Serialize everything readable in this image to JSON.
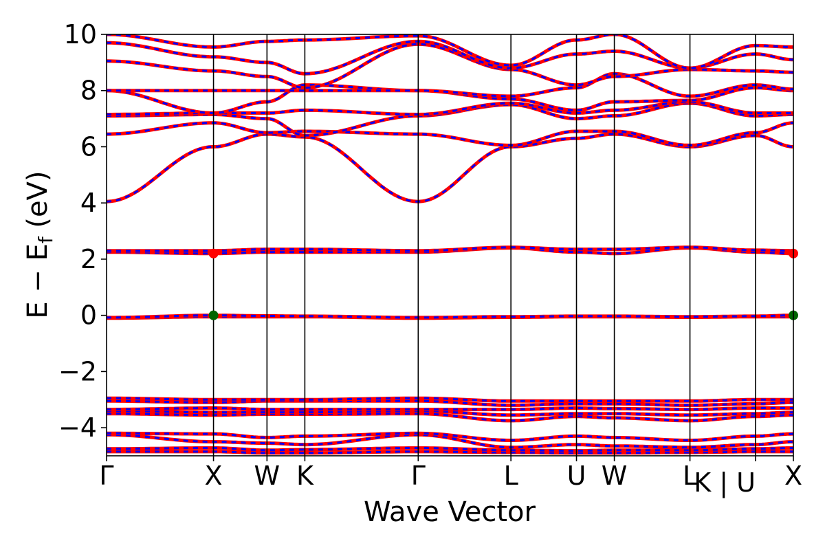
{
  "chart_data": {
    "type": "line",
    "xlabel": "Wave Vector",
    "ylabel_main": "E  −  E",
    "ylabel_sub": "f",
    "ylabel_unit": " (eV)",
    "ylim": [
      -5,
      10
    ],
    "yticks": [
      10,
      8,
      6,
      4,
      2,
      0,
      -2,
      -4
    ],
    "ytick_labels": [
      "10",
      "8",
      "6",
      "4",
      "2",
      "0",
      "−2",
      "−4"
    ],
    "kpoints": [
      {
        "label": "Γ",
        "x": 0
      },
      {
        "label": "X",
        "x": 1.0
      },
      {
        "label": "W",
        "x": 1.5
      },
      {
        "label": "K",
        "x": 1.854
      },
      {
        "label": "Γ",
        "x": 2.914
      },
      {
        "label": "L",
        "x": 3.781
      },
      {
        "label": "U",
        "x": 4.394
      },
      {
        "label": "W",
        "x": 4.748
      },
      {
        "label": "L",
        "x": 5.455
      },
      {
        "label": "K | U",
        "x": 6.068
      },
      {
        "label": "X",
        "x": 6.422
      }
    ],
    "grid": false,
    "colors": {
      "spin_up": "#ff0000",
      "spin_down": "#0000ff",
      "band_edge_marker": "#006400"
    },
    "bands": [
      {
        "name": "core1",
        "y": [
          -4.85,
          -4.85,
          -4.9,
          -4.9,
          -4.85,
          -4.88,
          -4.9,
          -4.9,
          -4.88,
          -4.85,
          -4.85
        ]
      },
      {
        "name": "core2",
        "y": [
          -4.75,
          -4.72,
          -4.8,
          -4.78,
          -4.72,
          -4.8,
          -4.82,
          -4.8,
          -4.8,
          -4.75,
          -4.72
        ]
      },
      {
        "name": "core3",
        "y": [
          -4.25,
          -4.5,
          -4.55,
          -4.6,
          -4.25,
          -4.7,
          -4.6,
          -4.65,
          -4.7,
          -4.6,
          -4.5
        ]
      },
      {
        "name": "core4",
        "y": [
          -4.2,
          -4.22,
          -4.35,
          -4.3,
          -4.2,
          -4.45,
          -4.3,
          -4.35,
          -4.45,
          -4.3,
          -4.22
        ]
      },
      {
        "name": "vb1",
        "y": [
          -3.5,
          -3.55,
          -3.52,
          -3.52,
          -3.5,
          -3.75,
          -3.6,
          -3.65,
          -3.75,
          -3.6,
          -3.55
        ]
      },
      {
        "name": "vb2",
        "y": [
          -3.4,
          -3.45,
          -3.45,
          -3.45,
          -3.4,
          -3.55,
          -3.5,
          -3.5,
          -3.55,
          -3.5,
          -3.45
        ]
      },
      {
        "name": "vb3",
        "y": [
          -3.35,
          -3.3,
          -3.35,
          -3.35,
          -3.35,
          -3.35,
          -3.3,
          -3.32,
          -3.35,
          -3.3,
          -3.3
        ]
      },
      {
        "name": "vb4",
        "y": [
          -3.05,
          -3.1,
          -3.05,
          -3.05,
          -3.05,
          -3.2,
          -3.15,
          -3.15,
          -3.2,
          -3.15,
          -3.1
        ]
      },
      {
        "name": "vb5",
        "y": [
          -2.95,
          -3.0,
          -3.0,
          -3.0,
          -2.95,
          -3.05,
          -3.05,
          -3.05,
          -3.05,
          -3.0,
          -3.0
        ]
      },
      {
        "name": "f1",
        "y": [
          -0.1,
          -0.05,
          -0.05,
          -0.05,
          -0.1,
          -0.07,
          -0.05,
          -0.05,
          -0.07,
          -0.05,
          -0.05
        ]
      },
      {
        "name": "f2",
        "y": [
          -0.08,
          0.0,
          -0.02,
          -0.03,
          -0.08,
          -0.05,
          -0.03,
          -0.03,
          -0.05,
          -0.03,
          0.0
        ]
      },
      {
        "name": "d1",
        "y": [
          2.25,
          2.2,
          2.25,
          2.25,
          2.25,
          2.4,
          2.25,
          2.2,
          2.4,
          2.25,
          2.2
        ]
      },
      {
        "name": "d2",
        "y": [
          2.3,
          2.3,
          2.35,
          2.35,
          2.3,
          2.42,
          2.35,
          2.35,
          2.42,
          2.32,
          2.3
        ]
      },
      {
        "name": "cb1",
        "y": [
          4.05,
          6.0,
          6.45,
          6.35,
          4.05,
          6.0,
          6.3,
          6.45,
          6.0,
          6.4,
          6.0
        ]
      },
      {
        "name": "cb2",
        "y": [
          6.45,
          6.85,
          6.5,
          6.55,
          6.45,
          6.05,
          6.55,
          6.55,
          6.05,
          6.5,
          6.85
        ]
      },
      {
        "name": "cb3",
        "y": [
          7.1,
          7.15,
          7.0,
          6.4,
          7.1,
          7.5,
          7.0,
          7.1,
          7.55,
          7.1,
          7.15
        ]
      },
      {
        "name": "cb4",
        "y": [
          7.15,
          7.2,
          7.2,
          7.3,
          7.15,
          7.55,
          7.2,
          7.3,
          7.6,
          7.2,
          7.2
        ]
      },
      {
        "name": "cb5",
        "y": [
          8.0,
          7.2,
          7.6,
          8.2,
          8.0,
          7.7,
          7.3,
          7.6,
          7.65,
          8.1,
          8.0
        ]
      },
      {
        "name": "cb6",
        "y": [
          8.0,
          8.0,
          8.0,
          8.0,
          8.0,
          7.8,
          8.1,
          8.6,
          7.8,
          8.2,
          8.05
        ]
      },
      {
        "name": "cb7",
        "y": [
          9.05,
          8.7,
          8.5,
          8.1,
          9.65,
          8.75,
          8.2,
          8.5,
          8.75,
          8.7,
          8.65
        ]
      },
      {
        "name": "cb8",
        "y": [
          9.7,
          9.2,
          9.0,
          8.6,
          9.75,
          8.8,
          9.3,
          9.4,
          8.8,
          9.3,
          9.1
        ]
      },
      {
        "name": "cb9",
        "y": [
          10.0,
          9.55,
          9.75,
          9.8,
          9.95,
          8.9,
          9.8,
          10.0,
          8.8,
          9.6,
          9.55
        ]
      }
    ],
    "markers": [
      {
        "x": 1.0,
        "y": 0.0,
        "color": "#006400"
      },
      {
        "x": 6.422,
        "y": 0.0,
        "color": "#006400"
      },
      {
        "x": 1.0,
        "y": 2.2,
        "color": "#ff0000"
      },
      {
        "x": 6.422,
        "y": 2.2,
        "color": "#ff0000"
      }
    ]
  }
}
